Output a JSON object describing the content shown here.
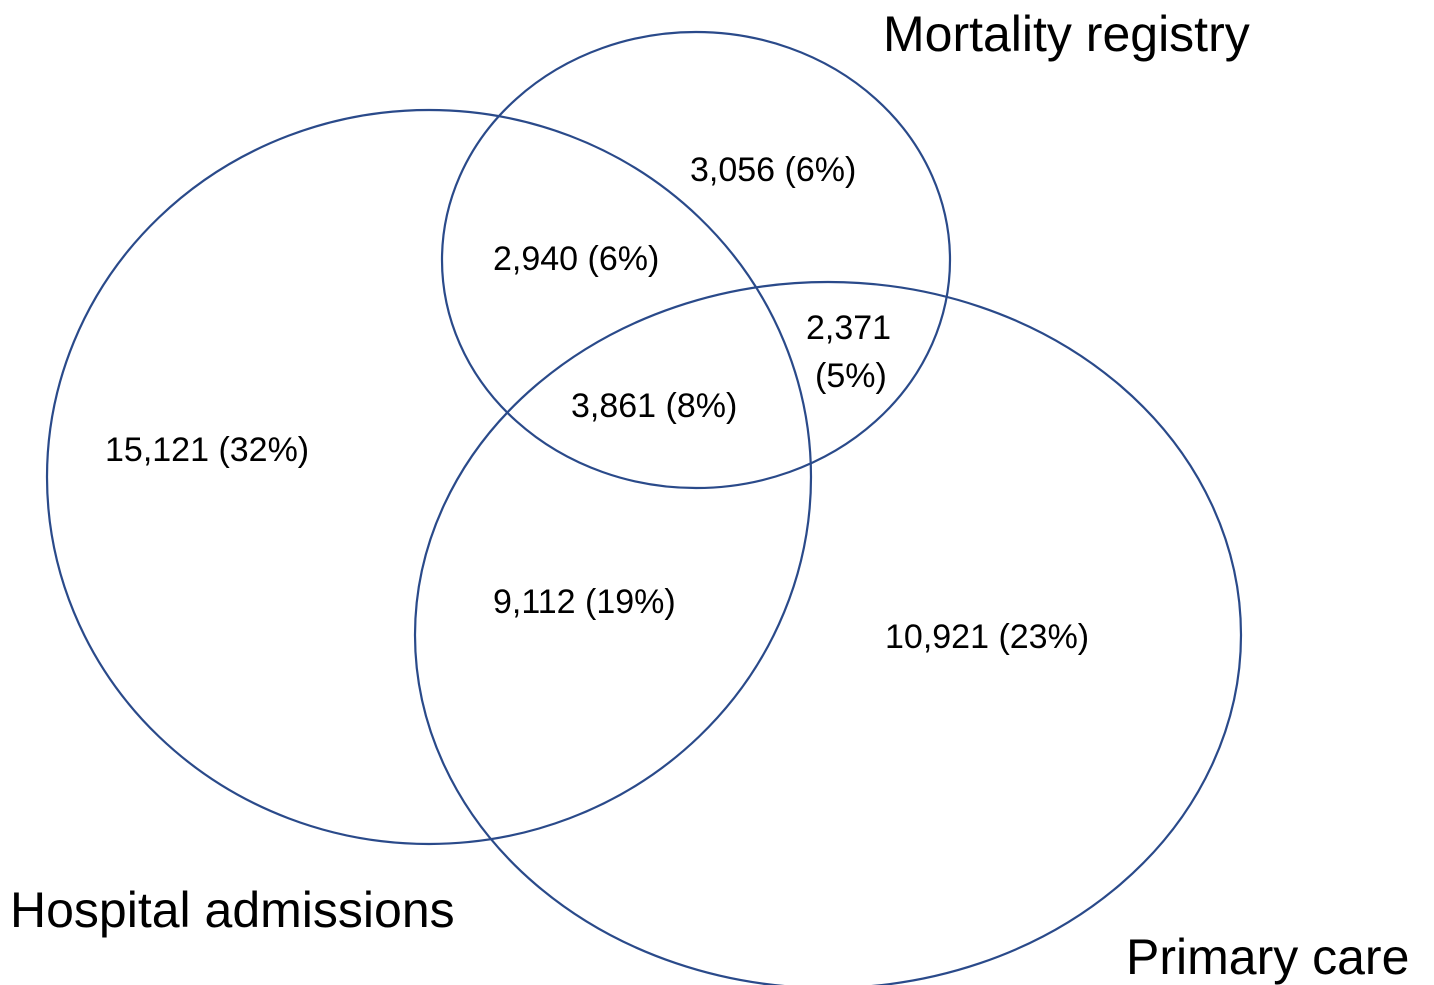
{
  "colors": {
    "circle_stroke": "#2a4a8a",
    "text": "#000000",
    "background": "#ffffff"
  },
  "sets": {
    "hospital": "Hospital admissions",
    "mortality": "Mortality registry",
    "primary": "Primary care"
  },
  "regions": {
    "hospital_only": "15,121 (32%)",
    "mortality_only": "3,056 (6%)",
    "primary_only": "10,921 (23%)",
    "hospital_mortality": "2,940 (6%)",
    "hospital_primary": "9,112 (19%)",
    "mortality_primary_count": "2,371",
    "mortality_primary_pct": "(5%)",
    "all_three": "3,861 (8%)"
  }
}
